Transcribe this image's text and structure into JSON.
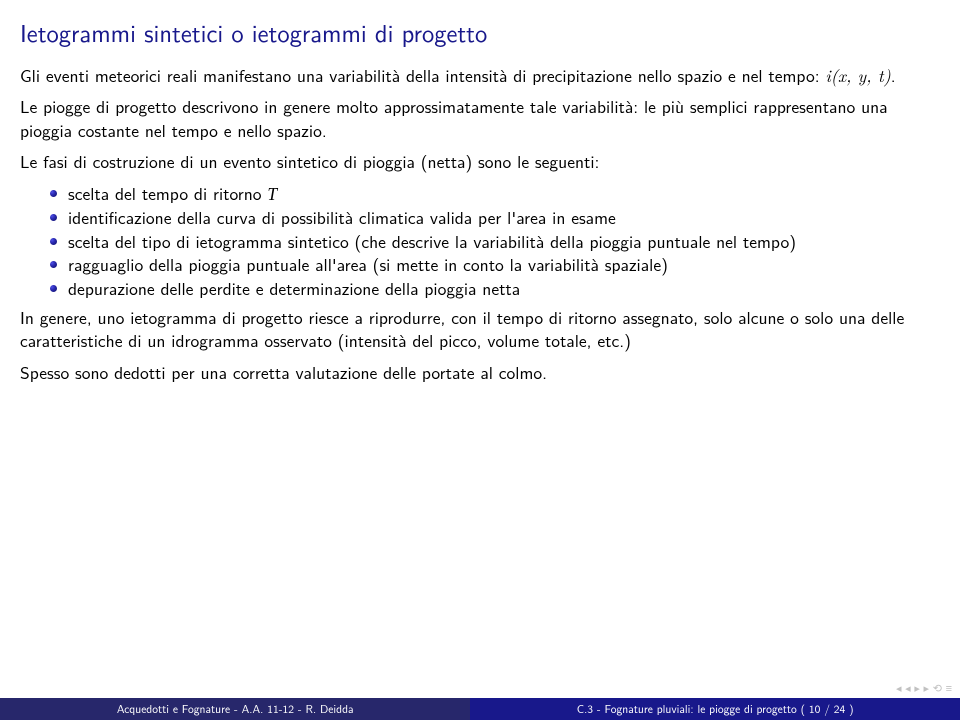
{
  "title": "Ietogrammi sintetici o ietogrammi di progetto",
  "para1_a": "Gli eventi meteorici reali manifestano una variabilità della intensità di precipitazione nello spazio e nel tempo: ",
  "para1_i": "i(x, y, t)",
  "para1_b": ".",
  "para2": "Le piogge di progetto descrivono in genere molto approssimatamente tale variabilità: le più semplici rappresentano una pioggia costante nel tempo e nello spazio.",
  "para3": "Le fasi di costruzione di un evento sintetico di pioggia (netta) sono le seguenti:",
  "bullets": [
    {
      "pre": "scelta del tempo di ritorno ",
      "it": "T",
      "post": ""
    },
    {
      "pre": "identificazione della curva di possibilità climatica valida per l'area in esame",
      "it": "",
      "post": ""
    },
    {
      "pre": "scelta del tipo di ietogramma sintetico (che descrive la variabilità della pioggia puntuale nel tempo)",
      "it": "",
      "post": ""
    },
    {
      "pre": "ragguaglio della pioggia puntuale all'area (si mette in conto la variabilità spaziale)",
      "it": "",
      "post": ""
    },
    {
      "pre": "depurazione delle perdite e determinazione della pioggia netta",
      "it": "",
      "post": ""
    }
  ],
  "para4": "In genere, uno ietogramma di progetto riesce a riprodurre, con il tempo di ritorno assegnato, solo alcune o solo una delle caratteristiche di un idrogramma osservato (intensità del picco, volume totale, etc.)",
  "para5": "Spesso sono dedotti per una corretta valutazione delle portate al colmo.",
  "footer_left": "Acquedotti e Fognature - A.A. 11-12 - R. Deidda",
  "footer_right": "C.3 - Fognature pluviali: le piogge di progetto  ( 10 / 24 )",
  "nav_glyphs": "◂  ◂  ▸  ▸  ⟲  ≡",
  "colors": {
    "title": "#18188b",
    "text": "#000000",
    "footer_left_bg": "#27276b",
    "footer_right_bg": "#18188b",
    "bullet_grad_a": "#4a4ae0",
    "bullet_grad_b": "#0a0a60"
  },
  "fontsize": {
    "title": 24.5,
    "body": 17.5,
    "footer": 11.5
  }
}
